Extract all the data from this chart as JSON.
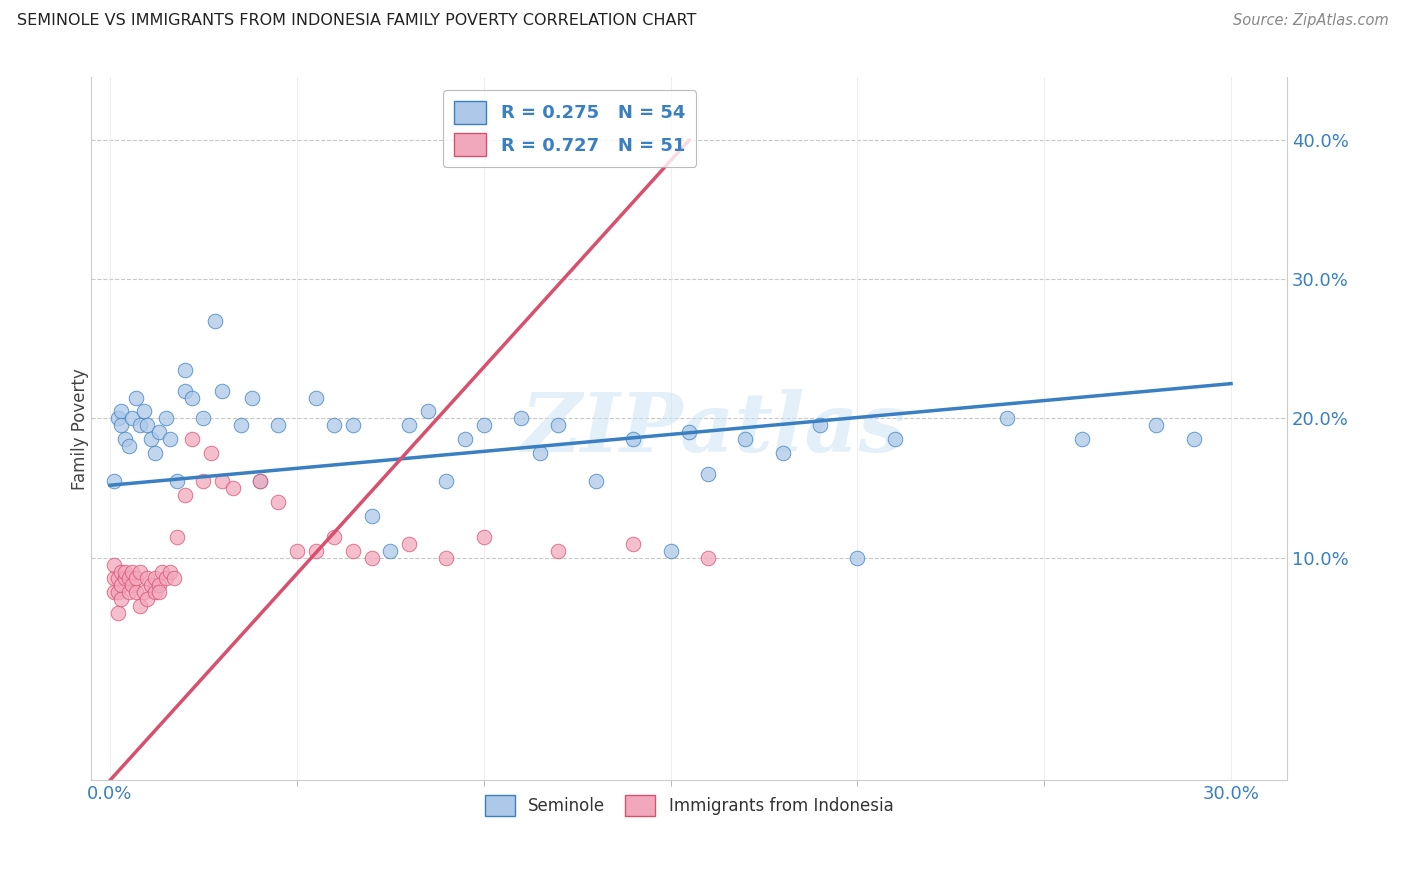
{
  "title": "SEMINOLE VS IMMIGRANTS FROM INDONESIA FAMILY POVERTY CORRELATION CHART",
  "source": "Source: ZipAtlas.com",
  "ylabel": "Family Poverty",
  "y_tick_vals": [
    0.1,
    0.2,
    0.3,
    0.4
  ],
  "y_tick_labels": [
    "10.0%",
    "20.0%",
    "30.0%",
    "40.0%"
  ],
  "x_tick_labels": [
    "0.0%",
    "30.0%"
  ],
  "x_tick_vals": [
    0.0,
    0.3
  ],
  "x_lim": [
    -0.005,
    0.315
  ],
  "y_lim": [
    -0.06,
    0.445
  ],
  "legend_label1": "R = 0.275   N = 54",
  "legend_label2": "R = 0.727   N = 51",
  "legend_labels_bottom": [
    "Seminole",
    "Immigrants from Indonesia"
  ],
  "color_blue": "#adc8e8",
  "color_pink": "#f2a8bc",
  "line_color_blue": "#3a7fc1",
  "line_color_pink": "#d94f6e",
  "watermark": "ZIPatlas",
  "seminole_x": [
    0.001,
    0.002,
    0.003,
    0.003,
    0.004,
    0.005,
    0.006,
    0.007,
    0.008,
    0.009,
    0.01,
    0.011,
    0.012,
    0.013,
    0.015,
    0.016,
    0.018,
    0.02,
    0.02,
    0.022,
    0.025,
    0.028,
    0.03,
    0.035,
    0.038,
    0.04,
    0.045,
    0.055,
    0.06,
    0.065,
    0.07,
    0.075,
    0.08,
    0.085,
    0.09,
    0.095,
    0.1,
    0.11,
    0.115,
    0.12,
    0.13,
    0.14,
    0.15,
    0.155,
    0.16,
    0.17,
    0.18,
    0.19,
    0.2,
    0.21,
    0.24,
    0.26,
    0.28,
    0.29
  ],
  "seminole_y": [
    0.155,
    0.2,
    0.205,
    0.195,
    0.185,
    0.18,
    0.2,
    0.215,
    0.195,
    0.205,
    0.195,
    0.185,
    0.175,
    0.19,
    0.2,
    0.185,
    0.155,
    0.22,
    0.235,
    0.215,
    0.2,
    0.27,
    0.22,
    0.195,
    0.215,
    0.155,
    0.195,
    0.215,
    0.195,
    0.195,
    0.13,
    0.105,
    0.195,
    0.205,
    0.155,
    0.185,
    0.195,
    0.2,
    0.175,
    0.195,
    0.155,
    0.185,
    0.105,
    0.19,
    0.16,
    0.185,
    0.175,
    0.195,
    0.1,
    0.185,
    0.2,
    0.185,
    0.195,
    0.185
  ],
  "indonesia_x": [
    0.001,
    0.001,
    0.001,
    0.002,
    0.002,
    0.002,
    0.003,
    0.003,
    0.003,
    0.004,
    0.004,
    0.005,
    0.005,
    0.006,
    0.006,
    0.007,
    0.007,
    0.008,
    0.008,
    0.009,
    0.01,
    0.01,
    0.011,
    0.012,
    0.012,
    0.013,
    0.013,
    0.014,
    0.015,
    0.016,
    0.017,
    0.018,
    0.02,
    0.022,
    0.025,
    0.027,
    0.03,
    0.033,
    0.04,
    0.045,
    0.05,
    0.055,
    0.06,
    0.065,
    0.07,
    0.08,
    0.09,
    0.1,
    0.12,
    0.14,
    0.16
  ],
  "indonesia_y": [
    0.075,
    0.085,
    0.095,
    0.075,
    0.085,
    0.06,
    0.09,
    0.08,
    0.07,
    0.085,
    0.09,
    0.075,
    0.085,
    0.08,
    0.09,
    0.075,
    0.085,
    0.09,
    0.065,
    0.075,
    0.085,
    0.07,
    0.08,
    0.075,
    0.085,
    0.08,
    0.075,
    0.09,
    0.085,
    0.09,
    0.085,
    0.115,
    0.145,
    0.185,
    0.155,
    0.175,
    0.155,
    0.15,
    0.155,
    0.14,
    0.105,
    0.105,
    0.115,
    0.105,
    0.1,
    0.11,
    0.1,
    0.115,
    0.105,
    0.11,
    0.1
  ],
  "blue_line_x": [
    0.0,
    0.3
  ],
  "blue_line_y": [
    0.152,
    0.225
  ],
  "pink_line_x": [
    0.0,
    0.155
  ],
  "pink_line_y": [
    -0.06,
    0.4
  ]
}
